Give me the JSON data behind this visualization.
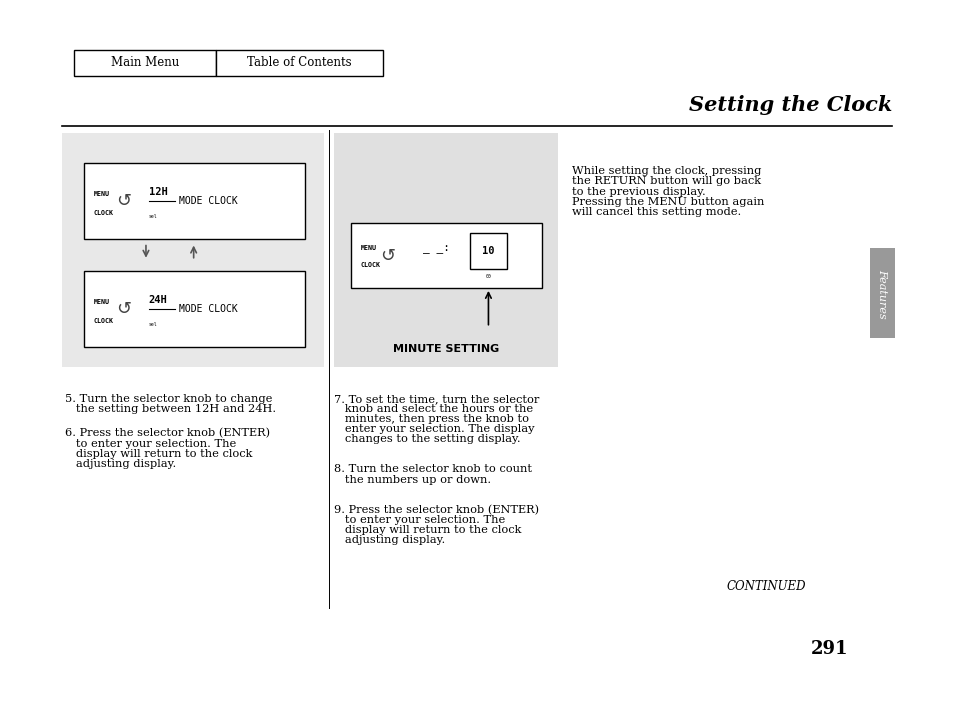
{
  "page_bg": "#ffffff",
  "title": "Setting the Clock",
  "nav_btn1_label": "Main Menu",
  "nav_btn2_label": "Table of Contents",
  "body_fontsize": 8.2,
  "sidebar_color": "#999999",
  "left_panel_bg": "#e8e8e8",
  "mid_panel_bg": "#e0e0e0",
  "col1_lines": [
    [
      "5. Turn the selector knob to change",
      0.446
    ],
    [
      "   the setting between 12H and 24H.",
      0.432
    ],
    [
      "6. Press the selector knob (ENTER)",
      0.398
    ],
    [
      "   to enter your selection. The",
      0.384
    ],
    [
      "   display will return to the clock",
      0.37
    ],
    [
      "   adjusting display.",
      0.356
    ]
  ],
  "col2_lines": [
    [
      "7. To set the time, turn the selector",
      0.446
    ],
    [
      "   knob and select the hours or the",
      0.432
    ],
    [
      "   minutes, then press the knob to",
      0.418
    ],
    [
      "   enter your selection. The display",
      0.404
    ],
    [
      "   changes to the setting display.",
      0.39
    ],
    [
      "8. Turn the selector knob to count",
      0.348
    ],
    [
      "   the numbers up or down.",
      0.334
    ],
    [
      "9. Press the selector knob (ENTER)",
      0.292
    ],
    [
      "   to enter your selection. The",
      0.278
    ],
    [
      "   display will return to the clock",
      0.264
    ],
    [
      "   adjusting display.",
      0.25
    ]
  ],
  "col3_lines": [
    [
      "While setting the clock, pressing",
      0.762
    ],
    [
      "the RETURN button will go back",
      0.748
    ],
    [
      "to the previous display.",
      0.734
    ],
    [
      "Pressing the MENU button again",
      0.72
    ],
    [
      "will cancel this setting mode.",
      0.706
    ]
  ]
}
